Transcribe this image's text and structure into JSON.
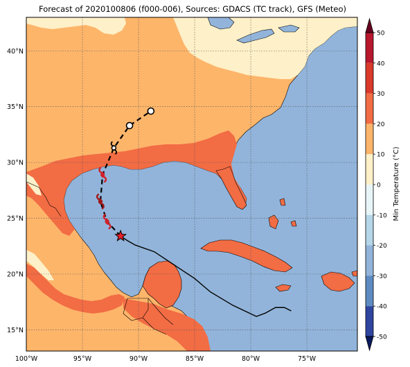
{
  "title": "Forecast of 2020100806 (f000-006), Sources: GDACS (TC track), GFS (Meteo)",
  "map": {
    "lon_range": [
      -100,
      -70.5
    ],
    "lat_range": [
      13.1,
      43
    ],
    "lon_ticks": [
      {
        "value": -100,
        "label": "100°W"
      },
      {
        "value": -95,
        "label": "95°W"
      },
      {
        "value": -90,
        "label": "90°W"
      },
      {
        "value": -85,
        "label": "85°W"
      },
      {
        "value": -80,
        "label": "80°W"
      },
      {
        "value": -75,
        "label": "75°W"
      }
    ],
    "lat_ticks": [
      {
        "value": 15,
        "label": "15°N"
      },
      {
        "value": 20,
        "label": "20°N"
      },
      {
        "value": 25,
        "label": "25°N"
      },
      {
        "value": 30,
        "label": "30°N"
      },
      {
        "value": 35,
        "label": "35°N"
      },
      {
        "value": 40,
        "label": "40°N"
      }
    ],
    "gridlines": "dotted",
    "ocean_color": "#92b4da"
  },
  "colorbar": {
    "label": "Min Temperature (°C)",
    "ticks": [
      50,
      40,
      30,
      20,
      10,
      0,
      -10,
      -20,
      -30,
      -40,
      -50
    ],
    "colors": [
      "#67001f",
      "#b2182b",
      "#d6604d",
      "#f4a582",
      "#fddbc7",
      "#ffffff",
      "#d1e5f0",
      "#92c5de",
      "#4393c3",
      "#2166ac",
      "#053061"
    ],
    "bands": [
      {
        "from": 40,
        "to": 50,
        "color": "#b8172e"
      },
      {
        "from": 30,
        "to": 40,
        "color": "#d93a2a"
      },
      {
        "from": 20,
        "to": 30,
        "color": "#f26c44"
      },
      {
        "from": 10,
        "to": 20,
        "color": "#fdb56a"
      },
      {
        "from": 0,
        "to": 10,
        "color": "#fef0c8"
      },
      {
        "from": -10,
        "to": 0,
        "color": "#e8f5f8"
      },
      {
        "from": -20,
        "to": -10,
        "color": "#b5d6e8"
      },
      {
        "from": -30,
        "to": -20,
        "color": "#92b4da"
      },
      {
        "from": -40,
        "to": -30,
        "color": "#5d8bc2"
      },
      {
        "from": -50,
        "to": -40,
        "color": "#2f45a0"
      }
    ]
  },
  "temperature_fields": [
    {
      "label": "0-10",
      "color": "#fef0c8"
    },
    {
      "label": "10-20",
      "color": "#fdb56a"
    },
    {
      "label": "20-30",
      "color": "#f26c44"
    }
  ],
  "storm": {
    "current_position": {
      "lon": -91.6,
      "lat": 23.4,
      "marker": "star",
      "color": "#e8202a"
    },
    "forecast_track": [
      {
        "lon": -91.6,
        "lat": 23.4
      },
      {
        "lon": -92.8,
        "lat": 24.7
      },
      {
        "lon": -93.4,
        "lat": 26.5
      },
      {
        "lon": -93.2,
        "lat": 28.9
      },
      {
        "lon": -92.2,
        "lat": 31.3
      },
      {
        "lon": -90.8,
        "lat": 33.3
      },
      {
        "lon": -88.9,
        "lat": 34.6
      }
    ],
    "forecast_points": [
      {
        "lon": -92.8,
        "lat": 24.7,
        "symbol": "hurricane",
        "color": "#d0202a"
      },
      {
        "lon": -93.4,
        "lat": 26.5,
        "symbol": "hurricane",
        "color": "#a01818"
      },
      {
        "lon": -93.2,
        "lat": 28.9,
        "symbol": "hurricane",
        "color": "#d0202a"
      },
      {
        "lon": -92.2,
        "lat": 31.3,
        "symbol": "storm",
        "color": "#000000"
      },
      {
        "lon": -90.8,
        "lat": 33.3,
        "symbol": "circle",
        "color": "#000000"
      },
      {
        "lon": -88.9,
        "lat": 34.6,
        "symbol": "circle",
        "color": "#000000"
      }
    ],
    "past_track": [
      {
        "lon": -76.4,
        "lat": 16.7
      },
      {
        "lon": -77.0,
        "lat": 17.0
      },
      {
        "lon": -77.8,
        "lat": 17.0
      },
      {
        "lon": -78.7,
        "lat": 16.5
      },
      {
        "lon": -79.5,
        "lat": 16.2
      },
      {
        "lon": -81.6,
        "lat": 17.2
      },
      {
        "lon": -83.6,
        "lat": 18.4
      },
      {
        "lon": -85.0,
        "lat": 19.6
      },
      {
        "lon": -86.8,
        "lat": 20.8
      },
      {
        "lon": -88.6,
        "lat": 22.0
      },
      {
        "lon": -90.3,
        "lat": 22.6
      },
      {
        "lon": -91.0,
        "lat": 23.0
      },
      {
        "lon": -91.6,
        "lat": 23.4
      }
    ]
  }
}
